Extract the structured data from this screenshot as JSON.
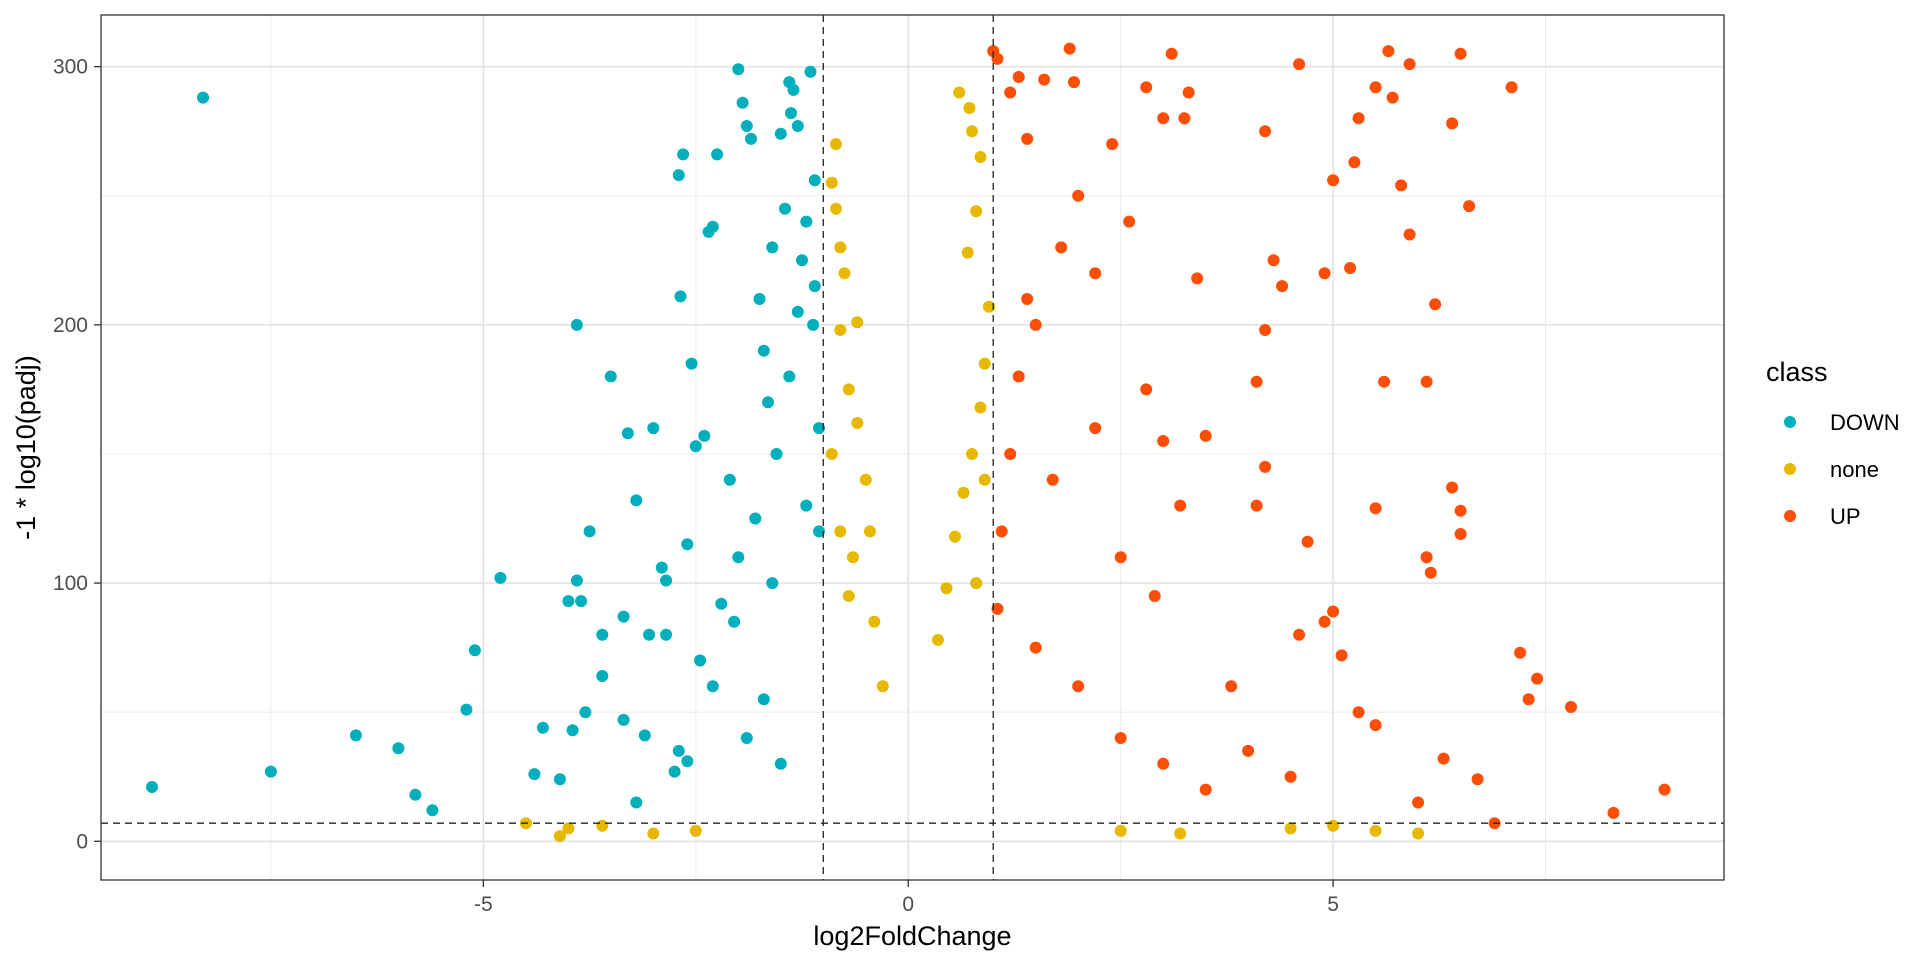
{
  "chart_data": {
    "type": "scatter",
    "title": "",
    "xlabel": "log2FoldChange",
    "ylabel": "-1 * log10(padj)",
    "xlim": [
      -9.5,
      9.6
    ],
    "ylim": [
      -15,
      320
    ],
    "x_ticks": [
      -5,
      0,
      5
    ],
    "y_ticks": [
      0,
      100,
      200,
      300
    ],
    "x_tick_labels": [
      "-5",
      "0",
      "5"
    ],
    "y_tick_labels": [
      "0",
      "100",
      "200",
      "300"
    ],
    "grid": true,
    "legend_position": "right",
    "legend": {
      "title": "class",
      "entries": [
        {
          "label": "DOWN",
          "color": "#00AFBB"
        },
        {
          "label": "none",
          "color": "#E7B800"
        },
        {
          "label": "UP",
          "color": "#FC4E07"
        }
      ]
    },
    "thresholds": {
      "vlines": [
        -1,
        1
      ],
      "hline": 7
    },
    "series": [
      {
        "name": "DOWN",
        "color": "#00AFBB",
        "points": [
          [
            -8.3,
            288
          ],
          [
            -8.9,
            21
          ],
          [
            -7.5,
            27
          ],
          [
            -6.5,
            41
          ],
          [
            -6.0,
            36
          ],
          [
            -5.8,
            18
          ],
          [
            -5.6,
            12
          ],
          [
            -5.2,
            51
          ],
          [
            -5.1,
            74
          ],
          [
            -4.8,
            102
          ],
          [
            -4.4,
            26
          ],
          [
            -4.3,
            44
          ],
          [
            -4.1,
            24
          ],
          [
            -4.0,
            93
          ],
          [
            -3.95,
            43
          ],
          [
            -3.9,
            200
          ],
          [
            -3.9,
            101
          ],
          [
            -3.85,
            93
          ],
          [
            -3.8,
            50
          ],
          [
            -3.75,
            120
          ],
          [
            -3.6,
            64
          ],
          [
            -3.6,
            80
          ],
          [
            -3.5,
            180
          ],
          [
            -3.35,
            87
          ],
          [
            -3.35,
            47
          ],
          [
            -3.3,
            158
          ],
          [
            -3.2,
            132
          ],
          [
            -3.2,
            15
          ],
          [
            -3.1,
            41
          ],
          [
            -3.05,
            80
          ],
          [
            -3.0,
            160
          ],
          [
            -2.9,
            106
          ],
          [
            -2.85,
            101
          ],
          [
            -2.85,
            80
          ],
          [
            -2.75,
            27
          ],
          [
            -2.7,
            35
          ],
          [
            -2.7,
            258
          ],
          [
            -2.68,
            211
          ],
          [
            -2.65,
            266
          ],
          [
            -2.6,
            115
          ],
          [
            -2.6,
            31
          ],
          [
            -2.55,
            185
          ],
          [
            -2.5,
            153
          ],
          [
            -2.45,
            70
          ],
          [
            -2.4,
            157
          ],
          [
            -2.35,
            236
          ],
          [
            -2.3,
            238
          ],
          [
            -2.25,
            266
          ],
          [
            -2.2,
            92
          ],
          [
            -2.1,
            140
          ],
          [
            -2.05,
            85
          ],
          [
            -2.0,
            299
          ],
          [
            -1.95,
            286
          ],
          [
            -1.9,
            277
          ],
          [
            -1.85,
            272
          ],
          [
            -1.75,
            210
          ],
          [
            -1.7,
            190
          ],
          [
            -1.65,
            170
          ],
          [
            -1.6,
            230
          ],
          [
            -1.55,
            150
          ],
          [
            -1.5,
            274
          ],
          [
            -1.45,
            245
          ],
          [
            -1.4,
            294
          ],
          [
            -1.38,
            282
          ],
          [
            -1.35,
            291
          ],
          [
            -1.3,
            277
          ],
          [
            -1.25,
            225
          ],
          [
            -1.2,
            130
          ],
          [
            -1.15,
            298
          ],
          [
            -1.12,
            200
          ],
          [
            -1.1,
            256
          ],
          [
            -1.05,
            160
          ],
          [
            -2.3,
            60
          ],
          [
            -2.0,
            110
          ],
          [
            -1.8,
            125
          ],
          [
            -1.6,
            100
          ],
          [
            -1.4,
            180
          ],
          [
            -1.3,
            205
          ],
          [
            -1.2,
            240
          ],
          [
            -1.1,
            215
          ],
          [
            -1.05,
            120
          ],
          [
            -1.9,
            40
          ],
          [
            -1.7,
            55
          ],
          [
            -1.5,
            30
          ]
        ]
      },
      {
        "name": "none",
        "color": "#E7B800",
        "points": [
          [
            -4.5,
            7
          ],
          [
            -4.1,
            2
          ],
          [
            -4.0,
            5
          ],
          [
            -3.6,
            6
          ],
          [
            -3.0,
            3
          ],
          [
            -2.5,
            4
          ],
          [
            -0.9,
            255
          ],
          [
            -0.85,
            245
          ],
          [
            -0.8,
            230
          ],
          [
            -0.75,
            220
          ],
          [
            -0.85,
            270
          ],
          [
            -0.8,
            198
          ],
          [
            -0.7,
            175
          ],
          [
            -0.6,
            162
          ],
          [
            -0.5,
            140
          ],
          [
            -0.45,
            120
          ],
          [
            -0.6,
            201
          ],
          [
            -0.8,
            120
          ],
          [
            -0.9,
            150
          ],
          [
            -0.7,
            95
          ],
          [
            -0.65,
            110
          ],
          [
            -0.4,
            85
          ],
          [
            -0.3,
            60
          ],
          [
            0.6,
            290
          ],
          [
            0.72,
            284
          ],
          [
            0.75,
            275
          ],
          [
            0.85,
            265
          ],
          [
            0.8,
            244
          ],
          [
            0.7,
            228
          ],
          [
            0.95,
            207
          ],
          [
            0.9,
            185
          ],
          [
            0.85,
            168
          ],
          [
            0.75,
            150
          ],
          [
            0.65,
            135
          ],
          [
            0.55,
            118
          ],
          [
            0.45,
            98
          ],
          [
            0.35,
            78
          ],
          [
            0.9,
            140
          ],
          [
            0.8,
            100
          ],
          [
            2.5,
            4
          ],
          [
            3.2,
            3
          ],
          [
            4.5,
            5
          ],
          [
            5.0,
            6
          ],
          [
            5.5,
            4
          ],
          [
            6.0,
            3
          ]
        ]
      },
      {
        "name": "UP",
        "color": "#FC4E07",
        "points": [
          [
            1.0,
            306
          ],
          [
            1.05,
            303
          ],
          [
            1.2,
            290
          ],
          [
            1.3,
            296
          ],
          [
            1.4,
            272
          ],
          [
            1.6,
            295
          ],
          [
            1.9,
            307
          ],
          [
            1.95,
            294
          ],
          [
            2.4,
            270
          ],
          [
            2.8,
            292
          ],
          [
            3.0,
            280
          ],
          [
            3.1,
            305
          ],
          [
            3.25,
            280
          ],
          [
            3.3,
            290
          ],
          [
            4.2,
            275
          ],
          [
            4.6,
            301
          ],
          [
            5.3,
            280
          ],
          [
            5.5,
            292
          ],
          [
            5.65,
            306
          ],
          [
            5.7,
            288
          ],
          [
            5.9,
            301
          ],
          [
            6.5,
            305
          ],
          [
            6.4,
            278
          ],
          [
            7.1,
            292
          ],
          [
            6.6,
            246
          ],
          [
            5.0,
            256
          ],
          [
            5.25,
            263
          ],
          [
            5.8,
            254
          ],
          [
            5.9,
            235
          ],
          [
            6.2,
            208
          ],
          [
            6.1,
            178
          ],
          [
            5.6,
            178
          ],
          [
            5.5,
            129
          ],
          [
            6.4,
            137
          ],
          [
            6.5,
            128
          ],
          [
            6.5,
            119
          ],
          [
            6.1,
            110
          ],
          [
            6.15,
            104
          ],
          [
            7.2,
            73
          ],
          [
            7.4,
            63
          ],
          [
            7.3,
            55
          ],
          [
            7.8,
            52
          ],
          [
            8.9,
            20
          ],
          [
            8.3,
            11
          ],
          [
            6.9,
            7
          ],
          [
            6.7,
            24
          ],
          [
            6.3,
            32
          ],
          [
            5.0,
            89
          ],
          [
            5.1,
            72
          ],
          [
            4.9,
            85
          ],
          [
            4.7,
            116
          ],
          [
            4.2,
            145
          ],
          [
            4.1,
            130
          ],
          [
            4.1,
            178
          ],
          [
            4.2,
            198
          ],
          [
            3.5,
            157
          ],
          [
            3.2,
            130
          ],
          [
            3.0,
            155
          ],
          [
            2.8,
            175
          ],
          [
            2.5,
            110
          ],
          [
            2.2,
            160
          ],
          [
            2.0,
            250
          ],
          [
            1.8,
            230
          ],
          [
            1.5,
            200
          ],
          [
            1.3,
            180
          ],
          [
            1.2,
            150
          ],
          [
            1.1,
            120
          ],
          [
            1.05,
            90
          ],
          [
            1.5,
            75
          ],
          [
            2.0,
            60
          ],
          [
            2.5,
            40
          ],
          [
            3.0,
            30
          ],
          [
            3.5,
            20
          ],
          [
            4.0,
            35
          ],
          [
            4.5,
            25
          ],
          [
            5.5,
            45
          ],
          [
            6.0,
            15
          ],
          [
            2.2,
            220
          ],
          [
            2.6,
            240
          ],
          [
            3.4,
            218
          ],
          [
            4.3,
            225
          ],
          [
            4.9,
            220
          ],
          [
            5.2,
            222
          ],
          [
            4.4,
            215
          ],
          [
            1.4,
            210
          ],
          [
            1.7,
            140
          ],
          [
            2.9,
            95
          ],
          [
            3.8,
            60
          ],
          [
            4.6,
            80
          ],
          [
            5.3,
            50
          ]
        ]
      }
    ]
  }
}
